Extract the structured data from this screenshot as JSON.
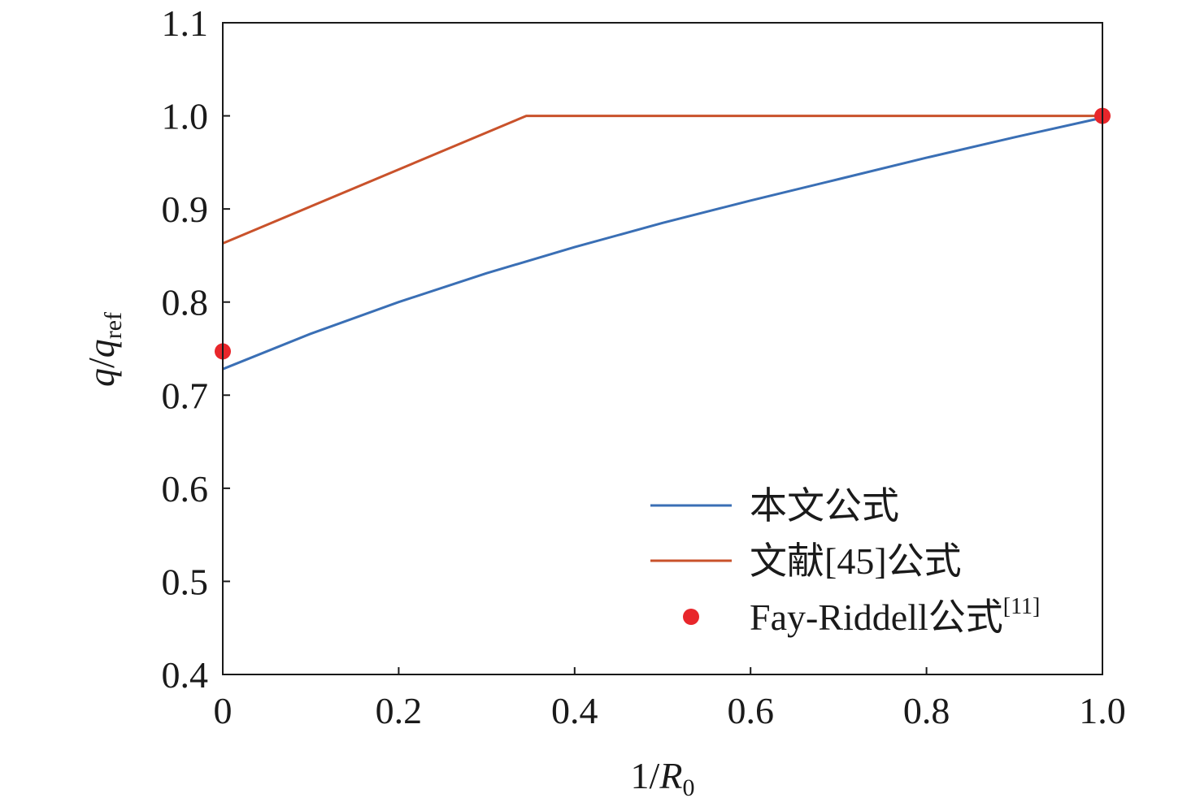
{
  "chart_data": {
    "type": "line",
    "xlabel": {
      "main": "1/",
      "var": "R",
      "sub": "0"
    },
    "ylabel": {
      "var1": "q",
      "slash": "/",
      "var2": "q",
      "sub": "ref"
    },
    "xlim": [
      0,
      1.0
    ],
    "ylim": [
      0.4,
      1.1
    ],
    "x_ticks": [
      "0",
      "0.2",
      "0.4",
      "0.6",
      "0.8",
      "1.0"
    ],
    "y_ticks": [
      "0.4",
      "0.5",
      "0.6",
      "0.7",
      "0.8",
      "0.9",
      "1.0",
      "1.1"
    ],
    "grid": false,
    "legend_position": "bottom-right",
    "series": [
      {
        "name": "本文公式",
        "kind": "line",
        "color": "#3a6fb5",
        "points": [
          [
            0,
            0.728
          ],
          [
            0.1,
            0.766
          ],
          [
            0.2,
            0.8
          ],
          [
            0.3,
            0.831
          ],
          [
            0.4,
            0.859
          ],
          [
            0.5,
            0.885
          ],
          [
            0.6,
            0.909
          ],
          [
            0.7,
            0.932
          ],
          [
            0.8,
            0.955
          ],
          [
            0.9,
            0.977
          ],
          [
            1.0,
            0.998
          ]
        ]
      },
      {
        "name": "文献[45]公式",
        "kind": "line",
        "color": "#c9522b",
        "points": [
          [
            0,
            0.863
          ],
          [
            0.345,
            1.0
          ],
          [
            1.0,
            1.0
          ]
        ]
      },
      {
        "name": "Fay-Riddell公式",
        "name_sup": "[11]",
        "kind": "scatter",
        "color": "#e8262b",
        "points": [
          [
            0,
            0.747
          ],
          [
            1.0,
            1.0
          ]
        ]
      }
    ]
  }
}
